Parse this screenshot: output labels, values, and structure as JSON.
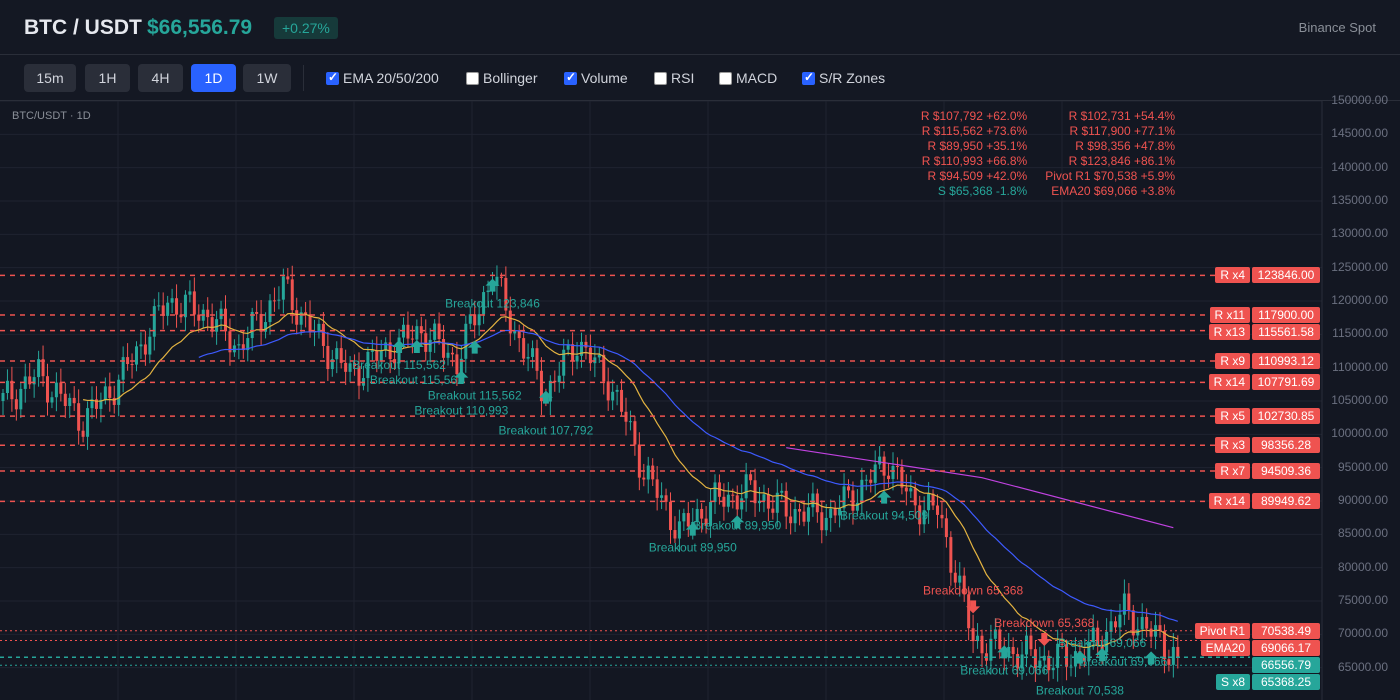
{
  "header": {
    "symbol": "BTC / USDT",
    "price": "$66,556.79",
    "change": "+0.27%",
    "exchange": "Binance Spot"
  },
  "toolbar": {
    "timeframes": [
      {
        "label": "15m",
        "active": false
      },
      {
        "label": "1H",
        "active": false
      },
      {
        "label": "4H",
        "active": false
      },
      {
        "label": "1D",
        "active": true
      },
      {
        "label": "1W",
        "active": false
      }
    ],
    "indicators": [
      {
        "label": "EMA 20/50/200",
        "checked": true
      },
      {
        "label": "Bollinger",
        "checked": false
      },
      {
        "label": "Volume",
        "checked": true
      },
      {
        "label": "RSI",
        "checked": false
      },
      {
        "label": "MACD",
        "checked": false
      },
      {
        "label": "S/R Zones",
        "checked": true
      }
    ]
  },
  "chart": {
    "symbol_label": "BTC/USDT · 1D",
    "colors": {
      "up": "#26a69a",
      "down": "#ef5350",
      "ema20": "#e3b341",
      "ema50": "#3d5afe",
      "ema200": "#c142e0",
      "resistance": "#ef5350",
      "support": "#26a69a"
    },
    "price_axis": [
      "150000.00",
      "145000.00",
      "140000.00",
      "135000.00",
      "130000.00",
      "125000.00",
      "120000.00",
      "115000.00",
      "110000.00",
      "105000.00",
      "100000.00",
      "95000.00",
      "90000.00",
      "85000.00",
      "80000.00",
      "75000.00",
      "70000.00",
      "65000.00"
    ],
    "price_range": [
      60000,
      150000
    ],
    "price_path": [
      [
        0,
        105000
      ],
      [
        8,
        109000
      ],
      [
        18,
        102000
      ],
      [
        26,
        108000
      ],
      [
        33,
        115600
      ],
      [
        37,
        120000
      ],
      [
        46,
        118000
      ],
      [
        53,
        113000
      ],
      [
        63,
        122000
      ],
      [
        70,
        115000
      ],
      [
        78,
        109000
      ],
      [
        86,
        112500
      ],
      [
        94,
        115600
      ],
      [
        102,
        111000
      ],
      [
        110,
        124000
      ],
      [
        115,
        115500
      ],
      [
        122,
        106000
      ],
      [
        129,
        114000
      ],
      [
        136,
        108000
      ],
      [
        140,
        102000
      ],
      [
        144,
        94500
      ],
      [
        152,
        85500
      ],
      [
        160,
        90000
      ],
      [
        168,
        91500
      ],
      [
        176,
        88600
      ],
      [
        186,
        88000
      ],
      [
        192,
        91500
      ],
      [
        199,
        96000
      ],
      [
        204,
        90000
      ],
      [
        210,
        88500
      ],
      [
        214,
        79500
      ],
      [
        218,
        69000
      ],
      [
        226,
        67500
      ],
      [
        236,
        66000
      ],
      [
        244,
        67500
      ],
      [
        252,
        73500
      ],
      [
        255,
        72000
      ],
      [
        264,
        66556
      ]
    ],
    "ema200_path": [
      [
        176,
        98000
      ],
      [
        220,
        93500
      ],
      [
        263,
        86000
      ]
    ],
    "summary_list": [
      {
        "text": "R $107,792 +62.0%",
        "type": "R"
      },
      {
        "text": "R $115,562 +73.6%",
        "type": "R"
      },
      {
        "text": "R $89,950 +35.1%",
        "type": "R"
      },
      {
        "text": "R $110,993 +66.8%",
        "type": "R"
      },
      {
        "text": "R $94,509 +42.0%",
        "type": "R"
      },
      {
        "text": "S $65,368 -1.8%",
        "type": "S"
      },
      {
        "text": "R $102,731 +54.4%",
        "type": "R"
      },
      {
        "text": "R $117,900 +77.1%",
        "type": "R"
      },
      {
        "text": "R $98,356 +47.8%",
        "type": "R"
      },
      {
        "text": "R $123,846 +86.1%",
        "type": "R"
      },
      {
        "text": "Pivot R1 $70,538 +5.9%",
        "type": "R"
      },
      {
        "text": "EMA20 $69,066 +3.8%",
        "type": "R"
      }
    ],
    "levels": [
      {
        "tag": "R x4",
        "value": "123846.00",
        "price": 123846,
        "type": "R"
      },
      {
        "tag": "R x11",
        "value": "117900.00",
        "price": 117900,
        "type": "R"
      },
      {
        "tag": "R x13",
        "value": "115561.58",
        "price": 115561.58,
        "type": "R"
      },
      {
        "tag": "R x9",
        "value": "110993.12",
        "price": 110993.12,
        "type": "R"
      },
      {
        "tag": "R x14",
        "value": "107791.69",
        "price": 107791.69,
        "type": "R"
      },
      {
        "tag": "R x5",
        "value": "102730.85",
        "price": 102730.85,
        "type": "R"
      },
      {
        "tag": "R x3",
        "value": "98356.28",
        "price": 98356.28,
        "type": "R"
      },
      {
        "tag": "R x7",
        "value": "94509.36",
        "price": 94509.36,
        "type": "R"
      },
      {
        "tag": "R x14",
        "value": "89949.62",
        "price": 89949.62,
        "type": "R"
      },
      {
        "tag": "Pivot R1",
        "value": "70538.49",
        "price": 70538.49,
        "type": "pivot"
      },
      {
        "tag": "EMA20",
        "value": "69066.17",
        "price": 69066.17,
        "type": "ema"
      },
      {
        "tag": "",
        "value": "66556.79",
        "price": 66556.79,
        "type": "last"
      },
      {
        "tag": "S x8",
        "value": "65368.25",
        "price": 65368.25,
        "type": "S"
      }
    ],
    "markers": [
      {
        "label": "Breakout 123,846",
        "day": 110,
        "price": 122300,
        "dir": "up"
      },
      {
        "label": "Breakout 115,562",
        "day": 89,
        "price": 113100,
        "dir": "up"
      },
      {
        "label": "Breakout 115,562",
        "day": 93,
        "price": 113100,
        "dir": "up"
      },
      {
        "label": "Breakout 115,562",
        "day": 106,
        "price": 113000,
        "dir": "up"
      },
      {
        "label": "Breakout 110,993",
        "day": 103,
        "price": 108500,
        "dir": "up"
      },
      {
        "label": "Breakout 107,792",
        "day": 122,
        "price": 105500,
        "dir": "up"
      },
      {
        "label": "Breakout 89,950",
        "day": 155,
        "price": 85700,
        "dir": "up"
      },
      {
        "label": "Breakout 89,950",
        "day": 165,
        "price": 86800,
        "dir": "up"
      },
      {
        "label": "Breakout 94,509",
        "day": 198,
        "price": 90500,
        "dir": "up"
      },
      {
        "label": "Breakdown 65,368",
        "day": 218,
        "price": 74200,
        "dir": "down"
      },
      {
        "label": "Breakdown 65,368",
        "day": 234,
        "price": 69300,
        "dir": "down"
      },
      {
        "label": "Breakout 69,066",
        "day": 225,
        "price": 67300,
        "dir": "up"
      },
      {
        "label": "Breakout 70,538",
        "day": 242,
        "price": 66500,
        "dir": "up"
      },
      {
        "label": "Breakout 69,066",
        "day": 247,
        "price": 66900,
        "dir": "up"
      },
      {
        "label": "Breakout 69,066",
        "day": 258,
        "price": 66400,
        "dir": "up"
      }
    ]
  }
}
